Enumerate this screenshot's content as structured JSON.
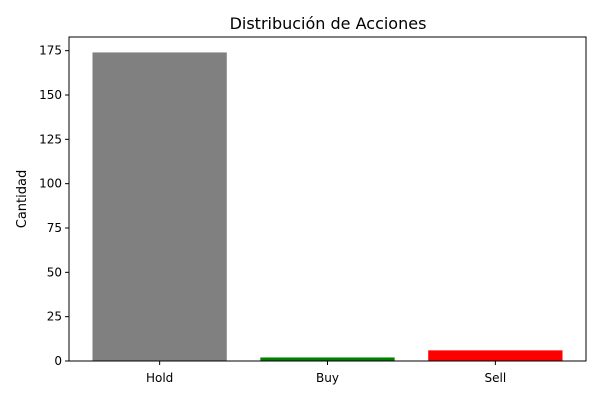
{
  "chart_data": {
    "type": "bar",
    "title": "Distribución de Acciones",
    "xlabel": "",
    "ylabel": "Cantidad",
    "categories": [
      "Hold",
      "Buy",
      "Sell"
    ],
    "values": [
      174,
      2,
      6
    ],
    "colors": [
      "#808080",
      "#008000",
      "#ff0000"
    ],
    "ylim": [
      0,
      182.7
    ],
    "yticks": [
      0,
      25,
      50,
      75,
      100,
      125,
      150,
      175
    ],
    "grid": false,
    "legend": "none"
  }
}
